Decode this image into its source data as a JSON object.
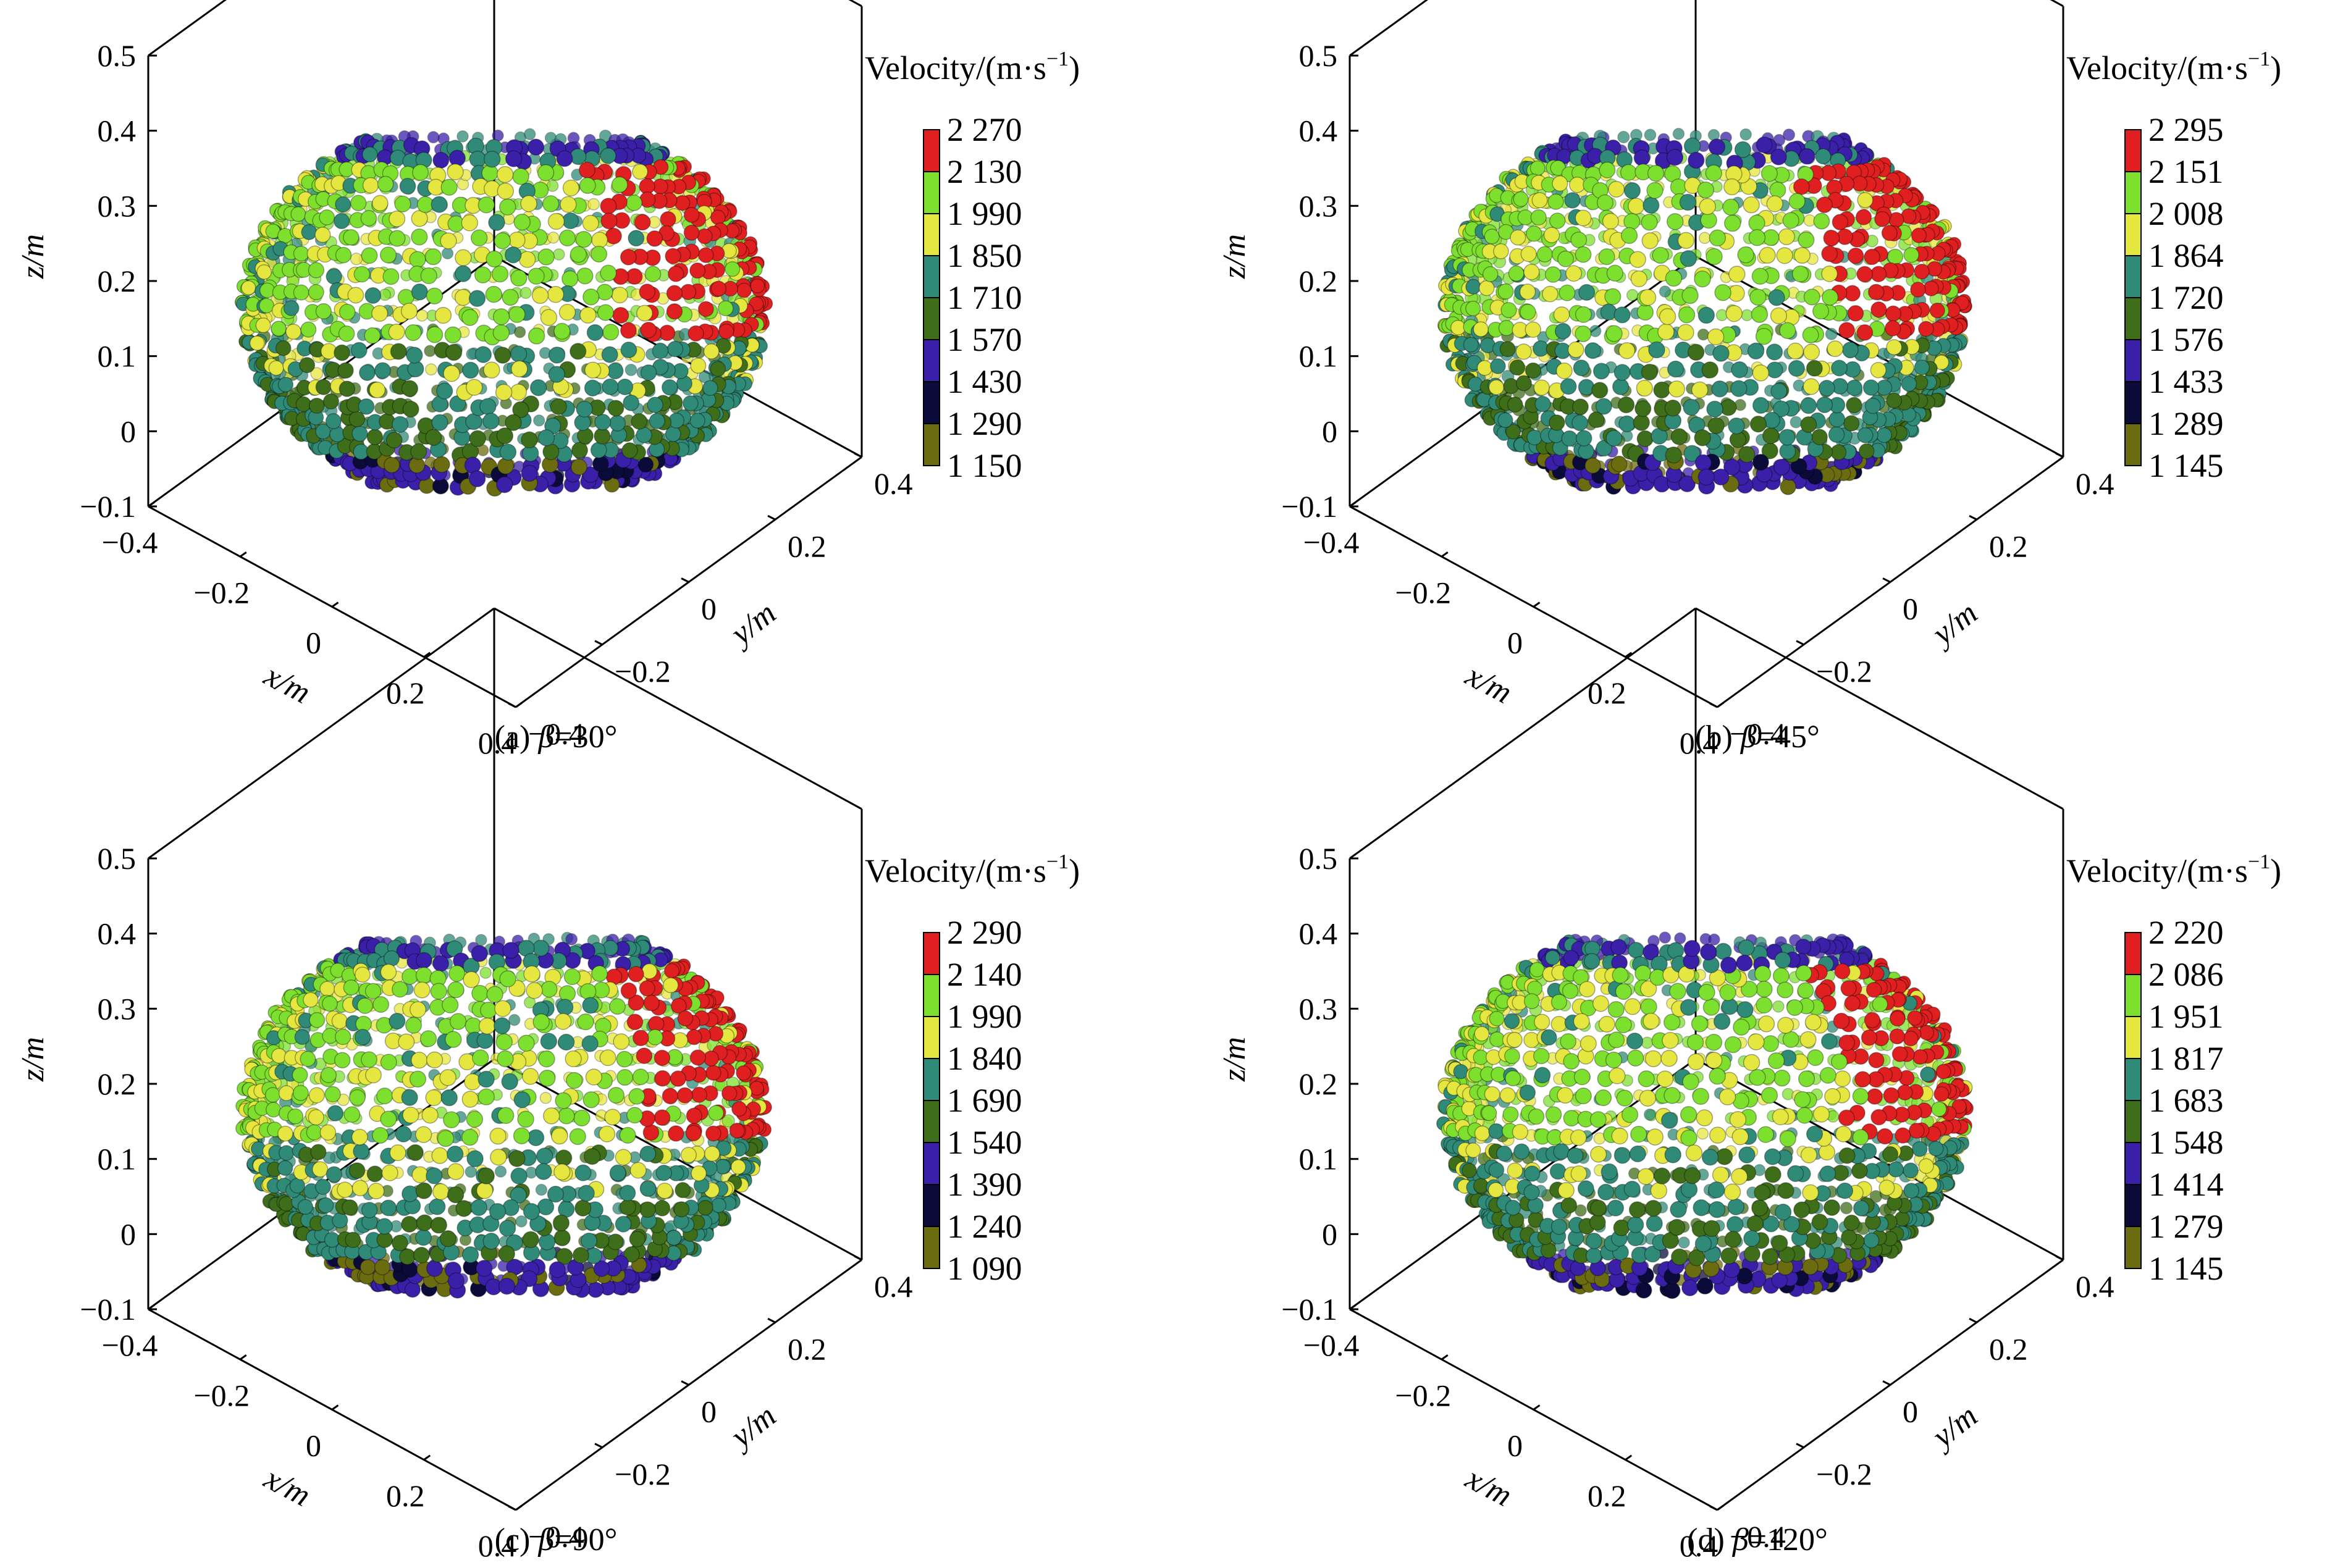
{
  "colors": {
    "bins": [
      "#6b6b10",
      "#0b0b3a",
      "#3a1fa8",
      "#3f6e1a",
      "#2f8a78",
      "#e6e640",
      "#7ee02e",
      "#e02020"
    ]
  },
  "chart_data": [
    {
      "type": "scatter",
      "caption": {
        "prefix": "(a) ",
        "symbol": "β",
        "value": "=30°"
      },
      "colorbar": {
        "title": "Velocity/(m·s",
        "title_sup": "−1",
        "title_end": ")",
        "ticks": [
          "2 270",
          "2 130",
          "1 990",
          "1 850",
          "1 710",
          "1 570",
          "1 430",
          "1 290",
          "1 150"
        ]
      },
      "x_axis": {
        "label": "x/m",
        "ticks": [
          "−0.4",
          "−0.2",
          "0",
          "0.2",
          "0.4"
        ],
        "range": [
          -0.4,
          0.4
        ]
      },
      "y_axis": {
        "label": "y/m",
        "ticks": [
          "−0.4",
          "−0.2",
          "0",
          "0.2",
          "0.4"
        ],
        "range": [
          -0.4,
          0.4
        ]
      },
      "z_axis": {
        "label": "z/m",
        "ticks": [
          "0.5",
          "0.4",
          "0.3",
          "0.2",
          "0.1",
          "0",
          "−0.1"
        ],
        "range": [
          -0.1,
          0.5
        ]
      },
      "hotspot_lon": 0.45,
      "seed": 11
    },
    {
      "type": "scatter",
      "caption": {
        "prefix": "(b) ",
        "symbol": "β",
        "value": "=45°"
      },
      "colorbar": {
        "title": "Velocity/(m·s",
        "title_sup": "−1",
        "title_end": ")",
        "ticks": [
          "2 295",
          "2 151",
          "2 008",
          "1 864",
          "1 720",
          "1 576",
          "1 433",
          "1 289",
          "1 145"
        ]
      },
      "x_axis": {
        "label": "x/m",
        "ticks": [
          "−0.4",
          "−0.2",
          "0",
          "0.2",
          "0.4"
        ],
        "range": [
          -0.4,
          0.4
        ]
      },
      "y_axis": {
        "label": "y/m",
        "ticks": [
          "−0.4",
          "−0.2",
          "0",
          "0.2",
          "0.4"
        ],
        "range": [
          -0.4,
          0.4
        ]
      },
      "z_axis": {
        "label": "z/m",
        "ticks": [
          "0.5",
          "0.4",
          "0.3",
          "0.2",
          "0.1",
          "0",
          "−0.1"
        ],
        "range": [
          -0.1,
          0.5
        ]
      },
      "hotspot_lon": 0.5,
      "seed": 23
    },
    {
      "type": "scatter",
      "caption": {
        "prefix": "(c) ",
        "symbol": "β",
        "value": "=90°"
      },
      "colorbar": {
        "title": "Velocity/(m·s",
        "title_sup": "−1",
        "title_end": ")",
        "ticks": [
          "2 290",
          "2 140",
          "1 990",
          "1 840",
          "1 690",
          "1 540",
          "1 390",
          "1 240",
          "1 090"
        ]
      },
      "x_axis": {
        "label": "x/m",
        "ticks": [
          "−0.4",
          "−0.2",
          "0",
          "0.2",
          "0.4"
        ],
        "range": [
          -0.4,
          0.4
        ]
      },
      "y_axis": {
        "label": "y/m",
        "ticks": [
          "−0.4",
          "−0.2",
          "0",
          "0.2",
          "0.4"
        ],
        "range": [
          -0.4,
          0.4
        ]
      },
      "z_axis": {
        "label": "z/m",
        "ticks": [
          "0.5",
          "0.4",
          "0.3",
          "0.2",
          "0.1",
          "0",
          "−0.1"
        ],
        "range": [
          -0.1,
          0.5
        ]
      },
      "hotspot_lon": 0.55,
      "seed": 37
    },
    {
      "type": "scatter",
      "caption": {
        "prefix": "(d) ",
        "symbol": "β",
        "value": "=120°"
      },
      "colorbar": {
        "title": "Velocity/(m·s",
        "title_sup": "−1",
        "title_end": ")",
        "ticks": [
          "2 220",
          "2 086",
          "1 951",
          "1 817",
          "1 683",
          "1 548",
          "1 414",
          "1 279",
          "1 145"
        ]
      },
      "x_axis": {
        "label": "x/m",
        "ticks": [
          "−0.4",
          "−0.2",
          "0",
          "0.2",
          "0.4"
        ],
        "range": [
          -0.4,
          0.4
        ]
      },
      "y_axis": {
        "label": "y/m",
        "ticks": [
          "−0.4",
          "−0.2",
          "0",
          "0.2",
          "0.4"
        ],
        "range": [
          -0.4,
          0.4
        ]
      },
      "z_axis": {
        "label": "z/m",
        "ticks": [
          "0.5",
          "0.4",
          "0.3",
          "0.2",
          "0.1",
          "0",
          "−0.1"
        ],
        "range": [
          -0.1,
          0.5
        ]
      },
      "hotspot_lon": 0.55,
      "seed": 53
    }
  ]
}
